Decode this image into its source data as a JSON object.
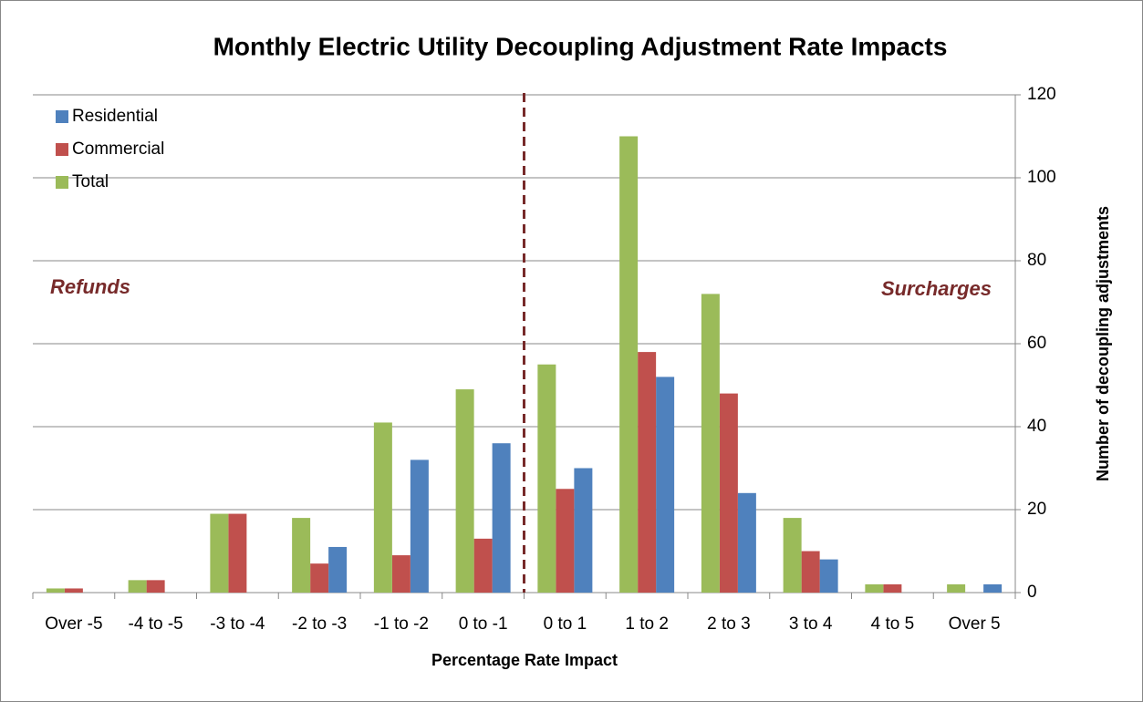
{
  "chart_data": {
    "type": "bar",
    "title": "Monthly Electric Utility Decoupling Adjustment Rate Impacts",
    "x_label": "Percentage Rate Impact",
    "y_label": "Number of decoupling adjustments",
    "annotations": [
      "Refunds",
      "Surcharges"
    ],
    "categories": [
      "Over -5",
      "-4 to -5",
      "-3 to -4",
      "-2 to -3",
      "-1 to -2",
      "0 to -1",
      "0 to 1",
      "1 to 2",
      "2 to 3",
      "3 to 4",
      "4 to 5",
      "Over 5"
    ],
    "series": [
      {
        "name": "Residential",
        "color": "#4f81bd",
        "values": [
          0,
          0,
          0,
          11,
          32,
          36,
          30,
          52,
          24,
          8,
          0,
          2
        ]
      },
      {
        "name": "Commercial",
        "color": "#c0504d",
        "values": [
          1,
          3,
          19,
          7,
          9,
          13,
          25,
          58,
          48,
          10,
          2,
          0
        ]
      },
      {
        "name": "Total",
        "color": "#9bbb59",
        "values": [
          1,
          3,
          19,
          18,
          41,
          49,
          55,
          110,
          72,
          18,
          2,
          2
        ]
      }
    ],
    "ylim": [
      0,
      120
    ],
    "yticks": [
      0,
      20,
      40,
      60,
      80,
      100,
      120
    ],
    "y_axis_position": "right",
    "grid": true,
    "legend": "top-left"
  }
}
